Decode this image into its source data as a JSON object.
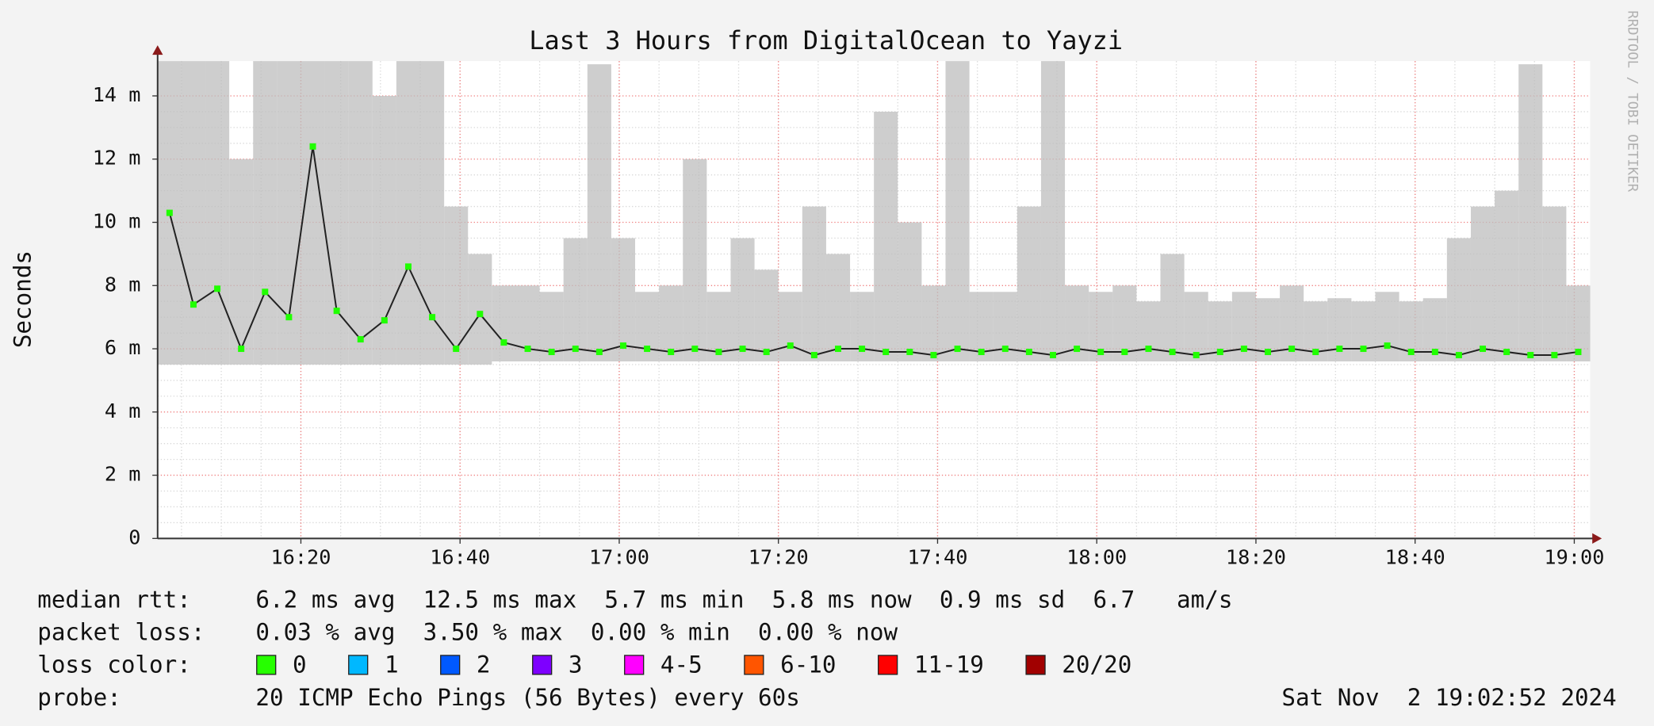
{
  "chart_data": {
    "type": "smoke",
    "title": "Last 3 Hours from DigitalOcean to Yayzi",
    "y_label": "Seconds",
    "credit": "RRDTOOL / TOBI OETIKER",
    "x": [
      "16:02",
      "16:05",
      "16:08",
      "16:11",
      "16:14",
      "16:17",
      "16:20",
      "16:23",
      "16:26",
      "16:29",
      "16:32",
      "16:35",
      "16:38",
      "16:41",
      "16:44",
      "16:47",
      "16:50",
      "16:53",
      "16:56",
      "16:59",
      "17:02",
      "17:05",
      "17:08",
      "17:11",
      "17:14",
      "17:17",
      "17:20",
      "17:23",
      "17:26",
      "17:29",
      "17:32",
      "17:35",
      "17:38",
      "17:41",
      "17:44",
      "17:47",
      "17:50",
      "17:53",
      "17:56",
      "17:59",
      "18:02",
      "18:05",
      "18:08",
      "18:11",
      "18:14",
      "18:17",
      "18:20",
      "18:23",
      "18:26",
      "18:29",
      "18:32",
      "18:35",
      "18:38",
      "18:41",
      "18:44",
      "18:47",
      "18:50",
      "18:53",
      "18:56",
      "18:59"
    ],
    "values": [
      0.0103,
      0.0074,
      0.0079,
      0.006,
      0.0078,
      0.007,
      0.0124,
      0.0072,
      0.0063,
      0.0069,
      0.0086,
      0.007,
      0.006,
      0.0071,
      0.0062,
      0.006,
      0.0059,
      0.006,
      0.0059,
      0.0061,
      0.006,
      0.0059,
      0.006,
      0.0059,
      0.006,
      0.0059,
      0.0061,
      0.0058,
      0.006,
      0.006,
      0.0059,
      0.0059,
      0.0058,
      0.006,
      0.0059,
      0.006,
      0.0059,
      0.0058,
      0.006,
      0.0059,
      0.0059,
      0.006,
      0.0059,
      0.0058,
      0.0059,
      0.006,
      0.0059,
      0.006,
      0.0059,
      0.006,
      0.006,
      0.0061,
      0.0059,
      0.0059,
      0.0058,
      0.006,
      0.0059,
      0.0058,
      0.0058,
      0.0059
    ],
    "low": [
      0.0055,
      0.0055,
      0.0055,
      0.0055,
      0.0055,
      0.0055,
      0.0055,
      0.0055,
      0.0055,
      0.0055,
      0.0055,
      0.0055,
      0.0055,
      0.0055,
      0.0056,
      0.0056,
      0.0056,
      0.0056,
      0.0056,
      0.0056,
      0.0056,
      0.0056,
      0.0056,
      0.0056,
      0.0056,
      0.0056,
      0.0056,
      0.0056,
      0.0056,
      0.0056,
      0.0056,
      0.0056,
      0.0056,
      0.0056,
      0.0056,
      0.0056,
      0.0056,
      0.0056,
      0.0056,
      0.0056,
      0.0056,
      0.0056,
      0.0056,
      0.0056,
      0.0056,
      0.0056,
      0.0056,
      0.0056,
      0.0056,
      0.0056,
      0.0056,
      0.0056,
      0.0056,
      0.0056,
      0.0056,
      0.0056,
      0.0056,
      0.0056,
      0.0056,
      0.0056
    ],
    "high": [
      0.0151,
      0.0151,
      0.0151,
      0.012,
      0.0151,
      0.0151,
      0.0151,
      0.0151,
      0.0151,
      0.014,
      0.0151,
      0.0151,
      0.0105,
      0.009,
      0.008,
      0.008,
      0.0078,
      0.0095,
      0.015,
      0.0095,
      0.0078,
      0.008,
      0.012,
      0.0078,
      0.0095,
      0.0085,
      0.0078,
      0.0105,
      0.009,
      0.0078,
      0.0135,
      0.01,
      0.008,
      0.0151,
      0.0078,
      0.0078,
      0.0105,
      0.0151,
      0.008,
      0.0078,
      0.008,
      0.0075,
      0.009,
      0.0078,
      0.0075,
      0.0078,
      0.0076,
      0.008,
      0.0075,
      0.0076,
      0.0075,
      0.0078,
      0.0075,
      0.0076,
      0.0095,
      0.0105,
      0.011,
      0.015,
      0.0105,
      0.008
    ],
    "color": "#20ff00",
    "smoke_color": "#bdbdbd",
    "xlim": [
      "16:02",
      "19:02"
    ],
    "xticks": [
      "16:20",
      "16:40",
      "17:00",
      "17:20",
      "17:40",
      "18:00",
      "18:20",
      "18:40",
      "19:00"
    ],
    "ylim": [
      0,
      0.0151
    ],
    "yticks": [
      0,
      {
        "value": 0.002,
        "label": "2 m"
      },
      {
        "value": 0.004,
        "label": "4 m"
      },
      {
        "value": 0.006,
        "label": "6 m"
      },
      {
        "value": 0.008,
        "label": "8 m"
      },
      {
        "value": 0.01,
        "label": "10 m"
      },
      {
        "value": 0.012,
        "label": "12 m"
      },
      {
        "value": 0.014,
        "label": "14 m"
      }
    ],
    "grid": true
  },
  "legend": {
    "stats": [
      {
        "label": "median rtt:",
        "text": "6.2 ms avg  12.5 ms max  5.7 ms min  5.8 ms now  0.9 ms sd  6.7   am/s"
      },
      {
        "label": "packet loss:",
        "text": "0.03 % avg  3.50 % max  0.00 % min  0.00 % now"
      }
    ],
    "loss_label": "loss color:",
    "loss_colors": [
      {
        "label": "0",
        "color": "#26ff00"
      },
      {
        "label": "1",
        "color": "#00b8ff"
      },
      {
        "label": "2",
        "color": "#0059ff"
      },
      {
        "label": "3",
        "color": "#7e00ff"
      },
      {
        "label": "4-5",
        "color": "#ff00ff"
      },
      {
        "label": "6-10",
        "color": "#ff5500"
      },
      {
        "label": "11-19",
        "color": "#ff0000"
      },
      {
        "label": "20/20",
        "color": "#a10000"
      }
    ],
    "probe_label": "probe:",
    "probe": "20 ICMP Echo Pings (56 Bytes) every 60s",
    "date": "Sat Nov  2 19:02:52 2024"
  }
}
